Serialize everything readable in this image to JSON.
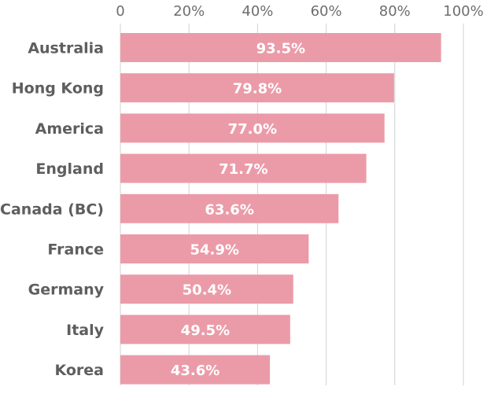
{
  "chart_data": {
    "type": "bar",
    "orientation": "horizontal",
    "categories": [
      "Australia",
      "Hong Kong",
      "America",
      "England",
      "Canada (BC)",
      "France",
      "Germany",
      "Italy",
      "Korea"
    ],
    "values": [
      93.5,
      79.8,
      77.0,
      71.7,
      63.6,
      54.9,
      50.4,
      49.5,
      43.6
    ],
    "data_labels": [
      "93.5%",
      "79.8%",
      "77.0%",
      "71.7%",
      "63.6%",
      "54.9%",
      "50.4%",
      "49.5%",
      "43.6%"
    ],
    "x_ticks": [
      0,
      20,
      40,
      60,
      80,
      100
    ],
    "x_tick_labels": [
      "0",
      "20%",
      "40%",
      "60%",
      "80%",
      "100%"
    ],
    "xlim": [
      0,
      100
    ],
    "x_axis_position": "top",
    "grid": true,
    "bar_color": "#eb9ba8",
    "title": "",
    "xlabel": "",
    "ylabel": ""
  }
}
